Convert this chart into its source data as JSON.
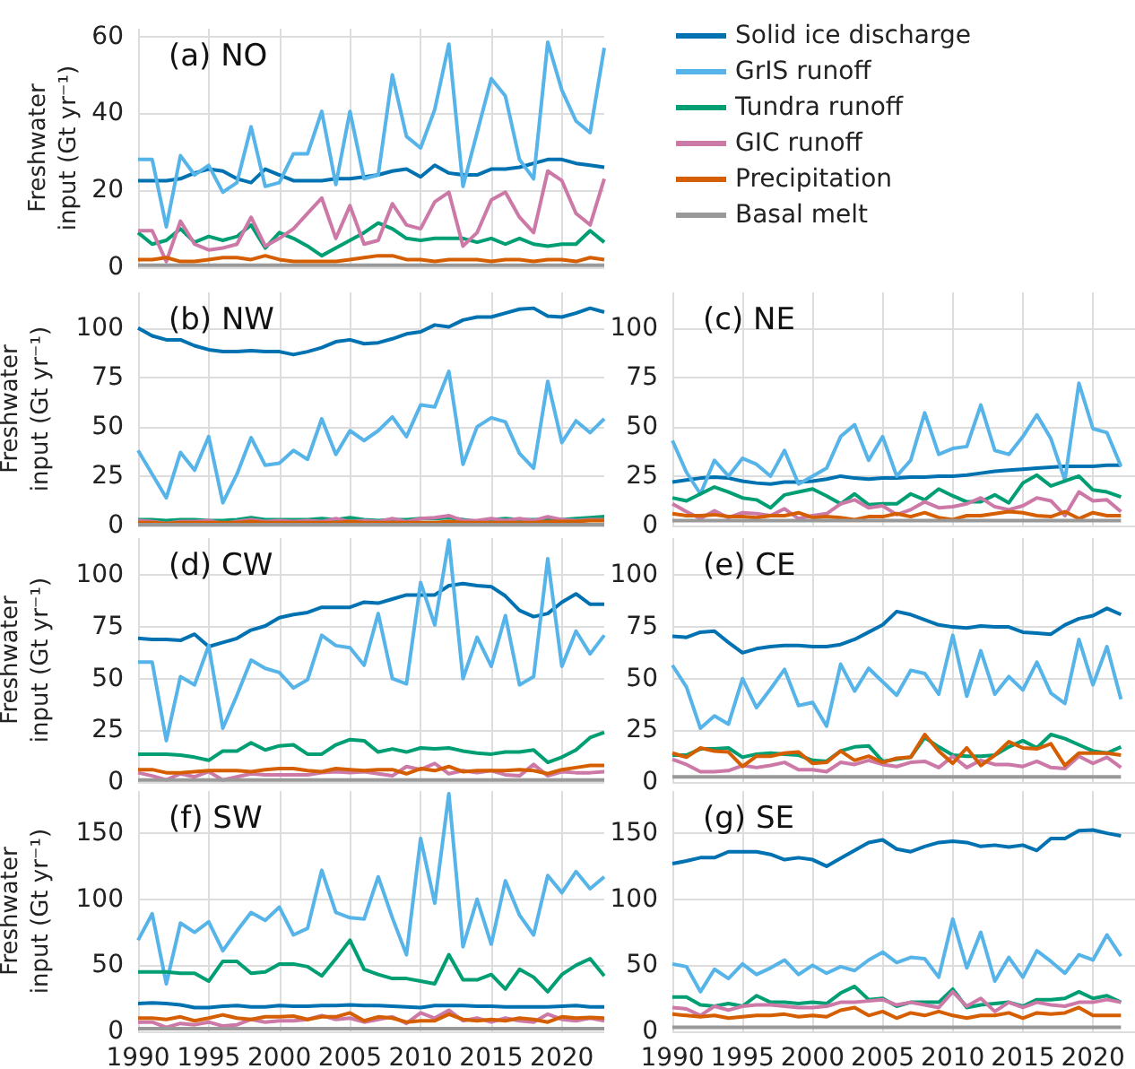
{
  "chart_data": [
    {
      "type": "line",
      "title": "(a) NO",
      "ylabel": "Freshwater input (Gt yr⁻¹)",
      "legend": "top right",
      "grid": true,
      "marker": "none",
      "tick_labels": "y",
      "x": [
        1990,
        1991,
        1992,
        1993,
        1994,
        1995,
        1996,
        1997,
        1998,
        1999,
        2000,
        2001,
        2002,
        2003,
        2004,
        2005,
        2006,
        2007,
        2008,
        2009,
        2010,
        2011,
        2012,
        2013,
        2014,
        2015,
        2016,
        2017,
        2018,
        2019,
        2020,
        2021,
        2022,
        2023
      ],
      "xlim": [
        1990,
        2023
      ],
      "xticks": [
        1990,
        1995,
        2000,
        2005,
        2010,
        2015,
        2020
      ],
      "ylim": [
        0,
        62
      ],
      "yticks": [
        0,
        20,
        40,
        60
      ],
      "series": [
        {
          "name": "Solid ice discharge",
          "color": "#0072b2",
          "values": [
            22.5,
            22.5,
            22.5,
            23,
            24.5,
            25.5,
            25,
            23,
            22,
            25.5,
            24,
            22.5,
            22.5,
            22.5,
            23,
            23,
            23.5,
            24,
            25,
            25.5,
            23.5,
            26.5,
            24.5,
            24,
            24,
            25.5,
            25.5,
            26,
            27,
            28,
            28,
            27,
            26.5,
            26
          ]
        },
        {
          "name": "GrIS runoff",
          "color": "#56b4e9",
          "values": [
            28,
            28,
            10.5,
            29,
            24,
            26.5,
            19.5,
            22,
            36.5,
            21,
            22,
            29.5,
            29.5,
            40.5,
            21.5,
            40.5,
            23,
            24,
            50,
            34,
            31,
            41,
            58,
            21,
            35,
            49,
            44.5,
            28,
            23,
            58.5,
            46,
            38,
            35,
            57
          ]
        },
        {
          "name": "Tundra runoff",
          "color": "#009e73",
          "values": [
            9,
            6,
            7,
            10,
            6.5,
            8,
            7,
            8,
            11,
            5,
            9,
            7.5,
            5.5,
            3,
            5,
            7,
            9,
            11.5,
            10,
            7.5,
            7,
            7.5,
            7.5,
            7.5,
            6.5,
            7.5,
            6,
            7.5,
            6,
            5.5,
            6,
            6,
            9.5,
            6.5
          ]
        },
        {
          "name": "GIC runoff",
          "color": "#cc79a7",
          "values": [
            9.5,
            9.5,
            1.5,
            12,
            6,
            4.5,
            5,
            6,
            13,
            5.5,
            7.5,
            10,
            14,
            18,
            7.5,
            16,
            6,
            7,
            16.5,
            11,
            10,
            17,
            19.5,
            5.5,
            9,
            17.5,
            19.5,
            13,
            9,
            25,
            22.5,
            14,
            11,
            23
          ]
        },
        {
          "name": "Precipitation",
          "color": "#d55e00",
          "values": [
            2,
            2,
            2.5,
            1.5,
            1.5,
            2,
            2.5,
            2.5,
            2,
            3,
            2,
            1.5,
            1.5,
            1.5,
            1.5,
            2,
            2.5,
            3,
            3,
            2,
            2,
            1.5,
            2,
            2,
            2,
            1.5,
            2,
            2,
            1.5,
            2,
            2,
            1.5,
            2.5,
            2
          ]
        },
        {
          "name": "Basal melt",
          "color": "#999999",
          "values": [
            0.5,
            0.5,
            0.5,
            0.5,
            0.5,
            0.5,
            0.5,
            0.5,
            0.5,
            0.5,
            0.5,
            0.5,
            0.5,
            0.5,
            0.5,
            0.5,
            0.5,
            0.5,
            0.5,
            0.5,
            0.5,
            0.5,
            0.5,
            0.5,
            0.5,
            0.5,
            0.5,
            0.5,
            0.5,
            0.5,
            0.5,
            0.5,
            0.5,
            0.5
          ]
        }
      ]
    },
    {
      "type": "line",
      "title": "(b) NW",
      "ylabel": "Freshwater input (Gt yr⁻¹)",
      "grid": true,
      "marker": "none",
      "tick_labels": "y",
      "x": [
        1990,
        1991,
        1992,
        1993,
        1994,
        1995,
        1996,
        1997,
        1998,
        1999,
        2000,
        2001,
        2002,
        2003,
        2004,
        2005,
        2006,
        2007,
        2008,
        2009,
        2010,
        2011,
        2012,
        2013,
        2014,
        2015,
        2016,
        2017,
        2018,
        2019,
        2020,
        2021,
        2022,
        2023
      ],
      "xlim": [
        1990,
        2023
      ],
      "xticks": [
        1990,
        1995,
        2000,
        2005,
        2010,
        2015,
        2020
      ],
      "ylim": [
        0,
        118
      ],
      "yticks": [
        0,
        25,
        50,
        75,
        100
      ],
      "series": [
        {
          "color": "#0072b2",
          "values": [
            100,
            96,
            94,
            94,
            91,
            89,
            88,
            88,
            88.5,
            88,
            88,
            86.5,
            88,
            90,
            93,
            94,
            92,
            92.5,
            94.5,
            97,
            98,
            101.5,
            100.5,
            104,
            105.5,
            105.5,
            107.5,
            109.5,
            110,
            106,
            105.5,
            107.5,
            110,
            108
          ]
        },
        {
          "color": "#56b4e9",
          "values": [
            38,
            26,
            14,
            37,
            28,
            45,
            11.5,
            26,
            44.5,
            30.5,
            31.5,
            38,
            33.5,
            54,
            36,
            48,
            43,
            48,
            55,
            45,
            61,
            60,
            78,
            31,
            50,
            54.5,
            52.5,
            36.5,
            29,
            73,
            42,
            53,
            47,
            54
          ]
        },
        {
          "color": "#009e73",
          "values": [
            3,
            3,
            2.5,
            3,
            3,
            2.5,
            2.5,
            3,
            4,
            3,
            3,
            3,
            3,
            3.5,
            3,
            4,
            3,
            2.5,
            3,
            3,
            3.5,
            3.5,
            4,
            3,
            2,
            3,
            3.5,
            3,
            3,
            3,
            3,
            3.5,
            4,
            4.5
          ]
        },
        {
          "color": "#cc79a7",
          "values": [
            2.5,
            2,
            1,
            2,
            2,
            2.5,
            1,
            2,
            3,
            2,
            2.5,
            2,
            2.5,
            2,
            3.5,
            2,
            2.5,
            2,
            3.5,
            2,
            3.5,
            4,
            5,
            2.5,
            2.5,
            3.5,
            2.5,
            3.5,
            2.5,
            4.5,
            3,
            2.5,
            3,
            3
          ]
        },
        {
          "color": "#d55e00",
          "values": [
            1.5,
            1.5,
            1,
            1.5,
            1.5,
            1.5,
            1.5,
            1.5,
            2,
            1.5,
            1.5,
            1.5,
            1.5,
            1.5,
            1.5,
            2,
            1.5,
            1.5,
            1.5,
            1.5,
            1.5,
            1.5,
            2,
            1.5,
            1.5,
            1.5,
            1.5,
            1.5,
            1.5,
            2,
            2,
            2,
            2.5,
            2.5
          ]
        },
        {
          "color": "#999999",
          "values": [
            0.5,
            0.5,
            0.5,
            0.5,
            0.5,
            0.5,
            0.5,
            0.5,
            0.5,
            0.5,
            0.5,
            0.5,
            0.5,
            0.5,
            0.5,
            0.5,
            0.5,
            0.5,
            0.5,
            0.5,
            0.5,
            0.5,
            0.5,
            0.5,
            0.5,
            0.5,
            0.5,
            0.5,
            0.5,
            0.5,
            0.5,
            0.5,
            0.5,
            0.5
          ]
        }
      ]
    },
    {
      "type": "line",
      "title": "(c) NE",
      "grid": true,
      "marker": "none",
      "tick_labels": "y",
      "x": [
        1990,
        1991,
        1992,
        1993,
        1994,
        1995,
        1996,
        1997,
        1998,
        1999,
        2000,
        2001,
        2002,
        2003,
        2004,
        2005,
        2006,
        2007,
        2008,
        2009,
        2010,
        2011,
        2012,
        2013,
        2014,
        2015,
        2016,
        2017,
        2018,
        2019,
        2020,
        2021,
        2022
      ],
      "xlim": [
        1990,
        2023
      ],
      "xticks": [
        1990,
        1995,
        2000,
        2005,
        2010,
        2015,
        2020
      ],
      "ylim": [
        0,
        118
      ],
      "yticks": [
        0,
        25,
        50,
        75,
        100
      ],
      "series": [
        {
          "color": "#0072b2",
          "values": [
            22,
            23,
            24,
            24.5,
            24,
            22.5,
            21.5,
            21,
            22,
            22,
            22.5,
            23.5,
            25,
            24,
            23.5,
            24,
            24,
            24.5,
            24.5,
            25,
            25,
            25.5,
            26.5,
            27.5,
            28,
            28.5,
            29,
            29.5,
            30,
            30,
            30,
            30.5,
            30.5
          ]
        },
        {
          "color": "#56b4e9",
          "values": [
            43,
            27,
            16,
            33,
            25,
            34,
            31,
            25,
            38,
            21,
            25,
            29,
            45,
            51,
            33,
            45,
            25,
            33,
            57,
            36,
            39,
            40,
            61,
            38,
            36,
            45,
            56,
            44,
            23,
            72,
            49,
            47,
            30
          ]
        },
        {
          "color": "#009e73",
          "values": [
            14,
            12.5,
            16,
            19.5,
            17,
            14,
            13,
            9,
            15.5,
            17,
            18.5,
            15,
            11,
            16,
            10.5,
            11,
            11,
            16,
            13,
            18.5,
            15,
            12,
            12,
            15.5,
            11.5,
            21.5,
            25.5,
            20,
            22.5,
            25,
            18,
            17,
            14.5
          ]
        },
        {
          "color": "#cc79a7",
          "values": [
            11,
            7,
            3.5,
            7.5,
            4,
            6.5,
            6,
            5,
            8.5,
            3.5,
            5,
            6,
            11,
            13,
            9,
            10,
            5.5,
            8,
            12,
            9,
            9.5,
            11,
            14,
            9.5,
            8,
            10,
            14,
            12.5,
            5,
            17,
            12.5,
            13,
            7
          ]
        },
        {
          "color": "#d55e00",
          "values": [
            6,
            5,
            5,
            5.5,
            4.5,
            4.5,
            4,
            5,
            5,
            6.5,
            4,
            4.5,
            4,
            3,
            4.5,
            4.5,
            6,
            4.5,
            6.5,
            4,
            3,
            5,
            5,
            6,
            7,
            6.5,
            5,
            4.5,
            7,
            3.5,
            6.5,
            5,
            5
          ]
        },
        {
          "color": "#999999",
          "values": [
            2.5,
            2.5,
            2.5,
            2.5,
            2.5,
            2.5,
            2.5,
            2.5,
            2.5,
            2.5,
            2.5,
            2.5,
            2.5,
            2.5,
            2.5,
            2.5,
            2.5,
            2.5,
            2.5,
            2.5,
            2.5,
            2.5,
            2.5,
            2.5,
            2.5,
            2.5,
            2.5,
            2.5,
            2.5,
            2.5,
            2.5,
            2.5,
            2.5
          ]
        }
      ]
    },
    {
      "type": "line",
      "title": "(d) CW",
      "ylabel": "Freshwater input (Gt yr⁻¹)",
      "grid": true,
      "marker": "none",
      "tick_labels": "y",
      "x": [
        1990,
        1991,
        1992,
        1993,
        1994,
        1995,
        1996,
        1997,
        1998,
        1999,
        2000,
        2001,
        2002,
        2003,
        2004,
        2005,
        2006,
        2007,
        2008,
        2009,
        2010,
        2011,
        2012,
        2013,
        2014,
        2015,
        2016,
        2017,
        2018,
        2019,
        2020,
        2021,
        2022,
        2023
      ],
      "xlim": [
        1990,
        2023
      ],
      "xticks": [
        1990,
        1995,
        2000,
        2005,
        2010,
        2015,
        2020
      ],
      "ylim": [
        0,
        118
      ],
      "yticks": [
        0,
        25,
        50,
        75,
        100
      ],
      "series": [
        {
          "color": "#0072b2",
          "values": [
            69.5,
            69,
            69,
            68.5,
            71.5,
            65.5,
            67.5,
            69.5,
            73.5,
            75.5,
            79.5,
            81,
            82,
            84.5,
            84.5,
            84.5,
            87,
            86.5,
            88.5,
            90.5,
            90.5,
            90.5,
            95,
            96,
            95,
            94.5,
            90,
            83,
            80,
            81.5,
            87,
            91,
            86,
            86
          ]
        },
        {
          "color": "#56b4e9",
          "values": [
            58,
            58,
            20,
            51,
            47,
            66,
            26,
            42,
            59,
            55,
            53,
            45.5,
            49.5,
            71,
            66,
            65,
            56.5,
            81.5,
            50,
            47.5,
            96.5,
            76,
            117,
            50,
            70,
            56,
            80.5,
            47,
            51,
            108,
            56,
            73,
            62,
            71
          ]
        },
        {
          "color": "#009e73",
          "values": [
            13.5,
            13.5,
            13.5,
            13,
            12,
            10.5,
            15,
            15,
            19,
            15.5,
            17.5,
            18,
            13.5,
            13.5,
            18,
            20.5,
            20,
            14.5,
            16,
            14.5,
            16.5,
            16,
            16.5,
            15,
            14,
            13.5,
            14.5,
            14.5,
            15.5,
            9.5,
            12,
            15.5,
            21.5,
            24
          ]
        },
        {
          "color": "#cc79a7",
          "values": [
            4.5,
            3,
            1,
            4,
            2.5,
            5,
            1,
            2.5,
            4,
            3.5,
            3.5,
            3.5,
            3.5,
            4.5,
            5,
            4.5,
            5,
            4,
            3,
            7.5,
            6,
            9,
            4,
            5.5,
            4.5,
            5.5,
            3.5,
            3,
            8.5,
            3,
            5,
            4.5,
            4.5,
            5
          ]
        },
        {
          "color": "#d55e00",
          "values": [
            6,
            6,
            4.5,
            4.5,
            5,
            5.5,
            5.5,
            5.5,
            5,
            6,
            6.5,
            6.5,
            5.5,
            5,
            6.5,
            6,
            5.5,
            6,
            6,
            4,
            6.5,
            5.5,
            7.5,
            5,
            5.5,
            5.5,
            5.5,
            6,
            5.5,
            4,
            6,
            7,
            8,
            8
          ]
        },
        {
          "color": "#999999",
          "values": [
            1,
            1,
            1,
            1,
            1,
            1,
            1,
            1,
            1,
            1,
            1,
            1,
            1,
            1,
            1,
            1,
            1,
            1,
            1,
            1,
            1,
            1,
            1,
            1,
            1,
            1,
            1,
            1,
            1,
            1,
            1,
            1,
            1,
            1
          ]
        }
      ]
    },
    {
      "type": "line",
      "title": "(e) CE",
      "grid": true,
      "marker": "none",
      "tick_labels": "y",
      "x": [
        1990,
        1991,
        1992,
        1993,
        1994,
        1995,
        1996,
        1997,
        1998,
        1999,
        2000,
        2001,
        2002,
        2003,
        2004,
        2005,
        2006,
        2007,
        2008,
        2009,
        2010,
        2011,
        2012,
        2013,
        2014,
        2015,
        2016,
        2017,
        2018,
        2019,
        2020,
        2021,
        2022
      ],
      "xlim": [
        1990,
        2023
      ],
      "xticks": [
        1990,
        1995,
        2000,
        2005,
        2010,
        2015,
        2020
      ],
      "ylim": [
        0,
        118
      ],
      "yticks": [
        0,
        25,
        50,
        75,
        100
      ],
      "series": [
        {
          "color": "#0072b2",
          "values": [
            70.5,
            70,
            72.5,
            73,
            67.5,
            62.5,
            64.5,
            65.5,
            66,
            66,
            65.5,
            65.5,
            66.5,
            69,
            72.5,
            76,
            82.5,
            81,
            78.5,
            76,
            75,
            74.5,
            75.5,
            75,
            75,
            72.5,
            72,
            71.5,
            76,
            79,
            80.5,
            84,
            81
          ]
        },
        {
          "color": "#56b4e9",
          "values": [
            56.5,
            46,
            26,
            32,
            28,
            50,
            36,
            45,
            54.5,
            37,
            38.5,
            27,
            57,
            44,
            55,
            48.5,
            42,
            54,
            52.5,
            42.5,
            71,
            41.5,
            63.5,
            42.5,
            51,
            44.5,
            58,
            43,
            38,
            69,
            47,
            65.5,
            40
          ]
        },
        {
          "color": "#009e73",
          "values": [
            13,
            13,
            16,
            16,
            16.5,
            12,
            13.5,
            14,
            13.5,
            13,
            10.5,
            10,
            15,
            17,
            17.5,
            10,
            11,
            12,
            21.5,
            17,
            13,
            12.5,
            12.5,
            13,
            17,
            20,
            16.5,
            23,
            21,
            18,
            15,
            14,
            17
          ]
        },
        {
          "color": "#cc79a7",
          "values": [
            11,
            8.5,
            5,
            5,
            5.5,
            8,
            7,
            8,
            9.5,
            6,
            6,
            5,
            9.5,
            8.5,
            10.5,
            8.5,
            7.5,
            9.5,
            10,
            7,
            12.5,
            7,
            10.5,
            8.5,
            8.5,
            7.5,
            10,
            7,
            6.5,
            12.5,
            9,
            12,
            7
          ]
        },
        {
          "color": "#d55e00",
          "values": [
            14,
            12,
            16.5,
            15,
            14.5,
            7.5,
            12.5,
            12.5,
            14,
            14.5,
            9,
            9.5,
            15,
            10.5,
            12.5,
            9.5,
            11.5,
            12,
            23,
            15,
            9,
            16.5,
            8,
            13,
            19.5,
            16.5,
            16,
            18.5,
            8,
            14,
            14,
            14,
            13
          ]
        },
        {
          "color": "#999999",
          "values": [
            2.5,
            2.5,
            2.5,
            2.5,
            2.5,
            2.5,
            2.5,
            2.5,
            2.5,
            2.5,
            2.5,
            2.5,
            2.5,
            2.5,
            2.5,
            2.5,
            2.5,
            2.5,
            2.5,
            2.5,
            2.5,
            2.5,
            2.5,
            2.5,
            2.5,
            2.5,
            2.5,
            2.5,
            2.5,
            2.5,
            2.5,
            2.5,
            2.5
          ]
        }
      ]
    },
    {
      "type": "line",
      "title": "(f) SW",
      "ylabel": "Freshwater input (Gt yr⁻¹)",
      "grid": true,
      "marker": "none",
      "x": [
        1990,
        1991,
        1992,
        1993,
        1994,
        1995,
        1996,
        1997,
        1998,
        1999,
        2000,
        2001,
        2002,
        2003,
        2004,
        2005,
        2006,
        2007,
        2008,
        2009,
        2010,
        2011,
        2012,
        2013,
        2014,
        2015,
        2016,
        2017,
        2018,
        2019,
        2020,
        2021,
        2022,
        2023
      ],
      "xlim": [
        1990,
        2023
      ],
      "xticks": [
        1990,
        1995,
        2000,
        2005,
        2010,
        2015,
        2020
      ],
      "ylim": [
        0,
        182
      ],
      "yticks": [
        0,
        50,
        100,
        150
      ],
      "series": [
        {
          "color": "#0072b2",
          "values": [
            21,
            21.5,
            21,
            20,
            18,
            18,
            19,
            19.5,
            18.5,
            18.5,
            19.5,
            19,
            19,
            19.5,
            19.5,
            20,
            19.5,
            19.5,
            19,
            18.5,
            18,
            19.5,
            19.5,
            19.5,
            19,
            19,
            18.5,
            18.5,
            18.5,
            18.5,
            19,
            19.5,
            18.5,
            18.5
          ]
        },
        {
          "color": "#56b4e9",
          "values": [
            69,
            89,
            36,
            82,
            75,
            83,
            61,
            76,
            90,
            84,
            94,
            73,
            78,
            122,
            90,
            86,
            85,
            117,
            86,
            58,
            146,
            97,
            180,
            64,
            100,
            66,
            114,
            88,
            73,
            118,
            105,
            121,
            108,
            117
          ]
        },
        {
          "color": "#009e73",
          "values": [
            45,
            45,
            45,
            44,
            44,
            38,
            53,
            53,
            44,
            45,
            51,
            51,
            49,
            42,
            55,
            69,
            47,
            43,
            40,
            40,
            38,
            36,
            58,
            39,
            39,
            43,
            32,
            47,
            41,
            30,
            43,
            50,
            55,
            42
          ]
        },
        {
          "color": "#cc79a7",
          "values": [
            7,
            7,
            3,
            6,
            5,
            7,
            4,
            5,
            9,
            7,
            8,
            8,
            9,
            12,
            9,
            10,
            7,
            9,
            11,
            6,
            14,
            10,
            16,
            8,
            10,
            7,
            10,
            8,
            7,
            13,
            9,
            8,
            10,
            8
          ]
        },
        {
          "color": "#d55e00",
          "values": [
            10,
            10,
            9,
            11,
            8,
            10,
            12.5,
            10,
            9,
            11,
            11,
            11.5,
            9,
            11,
            11,
            14,
            8,
            11,
            10,
            7,
            8,
            8,
            13,
            9,
            8,
            9,
            8,
            10,
            9,
            7,
            11,
            10,
            10.5,
            10
          ]
        },
        {
          "color": "#999999",
          "values": [
            2,
            2,
            2,
            2,
            2,
            2,
            2,
            2,
            2,
            2,
            2,
            2,
            2,
            2,
            2,
            2,
            2,
            2,
            2,
            2,
            2,
            2,
            2,
            2,
            2,
            2,
            2,
            2,
            2,
            2,
            2,
            2,
            2,
            2
          ]
        }
      ]
    },
    {
      "type": "line",
      "title": "(g) SE",
      "grid": true,
      "marker": "none",
      "x": [
        1990,
        1991,
        1992,
        1993,
        1994,
        1995,
        1996,
        1997,
        1998,
        1999,
        2000,
        2001,
        2002,
        2003,
        2004,
        2005,
        2006,
        2007,
        2008,
        2009,
        2010,
        2011,
        2012,
        2013,
        2014,
        2015,
        2016,
        2017,
        2018,
        2019,
        2020,
        2021,
        2022
      ],
      "xlim": [
        1990,
        2023
      ],
      "xticks": [
        1990,
        1995,
        2000,
        2005,
        2010,
        2015,
        2020
      ],
      "ylim": [
        0,
        182
      ],
      "yticks": [
        0,
        50,
        100,
        150
      ],
      "series": [
        {
          "color": "#0072b2",
          "values": [
            127,
            129,
            131.5,
            131.5,
            136,
            136,
            136,
            134,
            130,
            131.5,
            130,
            125,
            131,
            137,
            143,
            145,
            138,
            136,
            140,
            143,
            144,
            143,
            140,
            141,
            139.5,
            141,
            137,
            146,
            146,
            152,
            152.5,
            150,
            148
          ]
        },
        {
          "color": "#56b4e9",
          "values": [
            51,
            49,
            30,
            47,
            40,
            51,
            43,
            48,
            54,
            43,
            50,
            44,
            49,
            46,
            54,
            60,
            52,
            56,
            55,
            41,
            85,
            48,
            75,
            38,
            56,
            41,
            61,
            53,
            44,
            58,
            54,
            73,
            57
          ]
        },
        {
          "color": "#009e73",
          "values": [
            26,
            26,
            20,
            19,
            21,
            19,
            27,
            22,
            22,
            21,
            22,
            21,
            29,
            34,
            24,
            25,
            19,
            22,
            22,
            22,
            32,
            18,
            20,
            21,
            22,
            19,
            24,
            24,
            25,
            30,
            25,
            27,
            22
          ]
        },
        {
          "color": "#cc79a7",
          "values": [
            18,
            17,
            12,
            19,
            16,
            19,
            20,
            20,
            19,
            18,
            18,
            19,
            22,
            22,
            23,
            24,
            20,
            22,
            20,
            18,
            30,
            19,
            25,
            15,
            22,
            18,
            22,
            20,
            19,
            22,
            22,
            24,
            22
          ]
        },
        {
          "color": "#d55e00",
          "values": [
            13,
            12,
            11,
            12,
            10,
            11,
            12,
            12,
            13,
            11,
            12,
            11,
            16,
            18,
            12,
            15,
            10,
            14,
            12,
            15,
            12,
            10,
            12,
            12,
            14,
            10,
            14,
            13,
            14,
            18,
            12,
            12,
            12
          ]
        },
        {
          "color": "#999999",
          "values": [
            3,
            3,
            3,
            3,
            3,
            3,
            3,
            3,
            3,
            3,
            3,
            3,
            3,
            3,
            3,
            3,
            3,
            3,
            3,
            3,
            3,
            3,
            3,
            3,
            3,
            3,
            3,
            3,
            3,
            3,
            3,
            3,
            3
          ]
        }
      ]
    }
  ]
}
